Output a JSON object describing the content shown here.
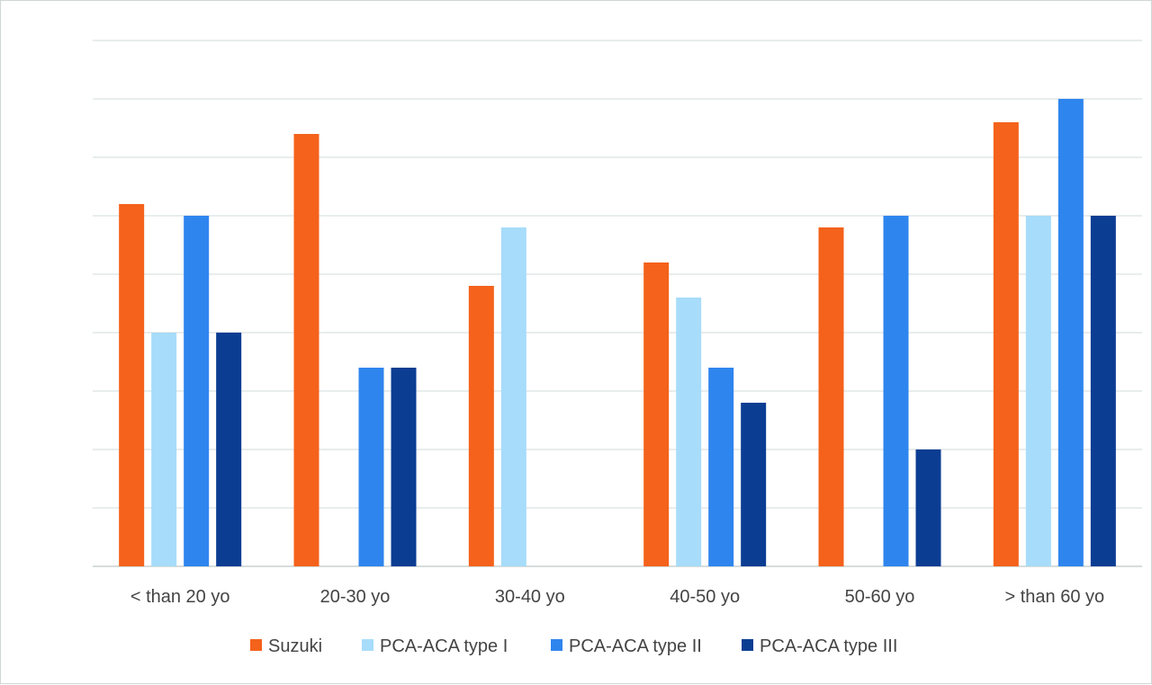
{
  "chart_data": {
    "type": "bar",
    "title": "",
    "xlabel": "",
    "ylabel": "",
    "categories": [
      "< than 20 yo",
      "20-30 yo",
      "30-40 yo",
      "40-50 yo",
      "50-60 yo",
      "> than 60 yo"
    ],
    "series": [
      {
        "name": "Suzuki",
        "color": "#f4621b",
        "values": [
          31,
          37,
          24,
          26,
          29,
          38
        ]
      },
      {
        "name": "PCA-ACA type I",
        "color": "#a7dcfa",
        "values": [
          20,
          0,
          29,
          23,
          0,
          30
        ]
      },
      {
        "name": "PCA-ACA type II",
        "color": "#2f85ee",
        "values": [
          30,
          17,
          0,
          17,
          30,
          40
        ]
      },
      {
        "name": "PCA-ACA type III",
        "color": "#0b3d93",
        "values": [
          20,
          17,
          0,
          14,
          10,
          30
        ]
      }
    ],
    "ylim": [
      0,
      45
    ],
    "gridlines": [
      0,
      5,
      10,
      15,
      20,
      25,
      30,
      35,
      40,
      45
    ],
    "grid": true,
    "legend": "bottom"
  }
}
